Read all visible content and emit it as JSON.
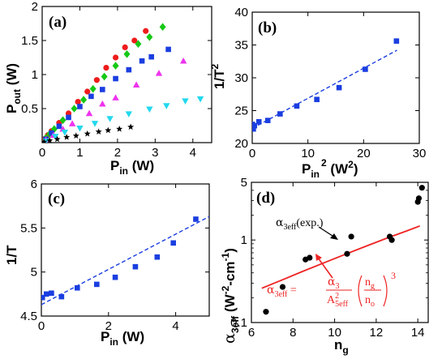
{
  "chart_data": [
    {
      "panel": "(a)",
      "type": "scatter",
      "xlabel": "P",
      "xlabel_sub": "in",
      "xlabel_unit": " (W)",
      "ylabel": "P",
      "ylabel_sub": "out",
      "ylabel_unit": " (W)",
      "xlim": [
        0,
        4.5
      ],
      "ylim": [
        0,
        2.0
      ],
      "xticks": [
        0,
        1,
        2,
        3,
        4
      ],
      "yticks": [
        0.5,
        1,
        1.5,
        2
      ],
      "series": [
        {
          "marker": "circle",
          "color": "#ee1c1c",
          "x": [
            0.08,
            0.15,
            0.25,
            0.45,
            0.7,
            0.95,
            1.2,
            1.45,
            1.7,
            1.95,
            2.2,
            2.45,
            2.75
          ],
          "y": [
            0.06,
            0.11,
            0.17,
            0.29,
            0.43,
            0.6,
            0.75,
            0.92,
            1.1,
            1.25,
            1.4,
            1.5,
            1.64
          ]
        },
        {
          "marker": "diamond",
          "color": "#16c816",
          "x": [
            0.1,
            0.2,
            0.32,
            0.55,
            0.85,
            1.1,
            1.35,
            1.65,
            1.95,
            2.25,
            2.55,
            2.85,
            3.2
          ],
          "y": [
            0.07,
            0.13,
            0.2,
            0.33,
            0.5,
            0.63,
            0.79,
            0.97,
            1.13,
            1.3,
            1.45,
            1.55,
            1.7
          ]
        },
        {
          "marker": "square",
          "color": "#1a3ee0",
          "x": [
            0.1,
            0.25,
            0.45,
            0.7,
            1.0,
            1.3,
            1.6,
            1.95,
            2.3,
            2.65,
            2.9,
            3.35
          ],
          "y": [
            0.05,
            0.14,
            0.24,
            0.37,
            0.53,
            0.68,
            0.78,
            0.94,
            1.07,
            1.2,
            1.26,
            1.37
          ]
        },
        {
          "marker": "triangle-up",
          "color": "#ee33ee",
          "x": [
            0.1,
            0.3,
            0.55,
            0.8,
            1.25,
            1.6,
            1.95,
            2.5,
            3.1,
            3.75
          ],
          "y": [
            0.04,
            0.11,
            0.2,
            0.28,
            0.43,
            0.57,
            0.66,
            0.85,
            1.02,
            1.2
          ]
        },
        {
          "marker": "triangle-down",
          "color": "#22d8ee",
          "x": [
            0.1,
            0.35,
            0.6,
            1.0,
            1.4,
            1.8,
            2.3,
            2.85,
            3.3,
            3.8,
            4.2
          ],
          "y": [
            0.02,
            0.09,
            0.15,
            0.21,
            0.28,
            0.35,
            0.42,
            0.49,
            0.54,
            0.61,
            0.64
          ]
        },
        {
          "marker": "star",
          "color": "#000000",
          "x": [
            0.05,
            0.2,
            0.4,
            0.65,
            0.9,
            1.2,
            1.5,
            1.75,
            2.05,
            2.35
          ],
          "y": [
            0.01,
            0.03,
            0.05,
            0.08,
            0.1,
            0.13,
            0.16,
            0.18,
            0.2,
            0.23
          ]
        }
      ]
    },
    {
      "panel": "(b)",
      "type": "scatter",
      "xlabel": "P",
      "xlabel_sub": "in",
      "xlabel_sup": "2",
      "xlabel_unit": " (W",
      "xlabel_unit_sup": "2",
      "xlabel_unit_end": ")",
      "ylabel": "1/T",
      "ylabel_sup": "2",
      "xlim": [
        0,
        30
      ],
      "ylim": [
        20,
        40
      ],
      "xticks": [
        0,
        10,
        20,
        30
      ],
      "yticks": [
        20,
        25,
        30,
        35,
        40
      ],
      "series": [
        {
          "marker": "square",
          "color": "#1a3ee0",
          "x": [
            0.0,
            0.05,
            0.1,
            0.2,
            0.4,
            1.2,
            2.8,
            5.0,
            8.0,
            11.6,
            15.6,
            20.3,
            25.9
          ],
          "y": [
            22.3,
            22.9,
            22.6,
            22.2,
            22.7,
            23.3,
            23.5,
            24.5,
            25.7,
            26.7,
            28.5,
            31.3,
            35.6
          ]
        },
        {
          "type": "fit-line",
          "style": "dashed",
          "color": "#1a3ee0",
          "x": [
            0,
            26
          ],
          "y": [
            22.3,
            34.2
          ]
        }
      ]
    },
    {
      "panel": "(c)",
      "type": "scatter",
      "xlabel": "P",
      "xlabel_sub": "in",
      "xlabel_unit": " (W)",
      "ylabel": "1/T",
      "xlim": [
        0,
        5
      ],
      "ylim": [
        4.5,
        6
      ],
      "xticks": [
        0,
        2,
        4
      ],
      "yticks": [
        4.5,
        5,
        5.5,
        6
      ],
      "series": [
        {
          "marker": "square",
          "color": "#1a3ee0",
          "x": [
            0.03,
            0.15,
            0.3,
            0.6,
            1.07,
            1.65,
            2.2,
            2.8,
            3.45,
            3.93,
            4.6
          ],
          "y": [
            4.71,
            4.75,
            4.76,
            4.72,
            4.82,
            4.86,
            4.94,
            5.06,
            5.17,
            5.33,
            5.6
          ]
        },
        {
          "type": "fit-line",
          "style": "dashed",
          "color": "#1a3ee0",
          "x": [
            0,
            5
          ],
          "y": [
            4.63,
            5.63
          ]
        }
      ]
    },
    {
      "panel": "(d)",
      "type": "scatter",
      "yscale": "log",
      "xlabel": "n",
      "xlabel_sub": "g",
      "ylabel": "α",
      "ylabel_sub": "3eff",
      "ylabel_unit": " (W",
      "ylabel_unit_sup": "-2",
      "ylabel_unit_mid": "-cm",
      "ylabel_unit_sup2": "-1",
      "ylabel_unit_end": ")",
      "xlim": [
        6,
        14.5
      ],
      "ylim": [
        0.1,
        5
      ],
      "xticks": [
        6,
        8,
        10,
        12,
        14
      ],
      "yticks": [
        0.1,
        1,
        5
      ],
      "ytick_labels": [
        "0.1",
        "1",
        "5"
      ],
      "series": [
        {
          "marker": "circle",
          "color": "#000000",
          "x": [
            6.7,
            7.5,
            8.6,
            8.8,
            10.6,
            10.8,
            12.65,
            12.75,
            14.0,
            14.05,
            14.2
          ],
          "y": [
            0.135,
            0.27,
            0.58,
            0.61,
            0.68,
            1.1,
            1.1,
            1.0,
            2.9,
            3.2,
            4.3
          ]
        },
        {
          "type": "theory-line",
          "color": "#ee2222",
          "x": [
            6.5,
            7.5,
            8.5,
            9.5,
            10.5,
            11.5,
            12.5,
            13.5,
            14.1
          ],
          "y": [
            0.26,
            0.33,
            0.42,
            0.53,
            0.67,
            0.84,
            1.05,
            1.3,
            1.48
          ]
        }
      ],
      "annotations": {
        "exp": {
          "text": "α",
          "sub": "3eff",
          "tail": "(exp.)"
        },
        "theory": {
          "lhs": "α",
          "lhs_sub": "3eff",
          "eq": " = ",
          "num": "α",
          "num_sub": "3",
          "den": "A",
          "den_sup": "2",
          "den_sub": "5eff",
          "frac_num": "n",
          "frac_num_sub": "g",
          "frac_den": "n",
          "frac_den_sub": "o",
          "power": "3"
        }
      }
    }
  ]
}
